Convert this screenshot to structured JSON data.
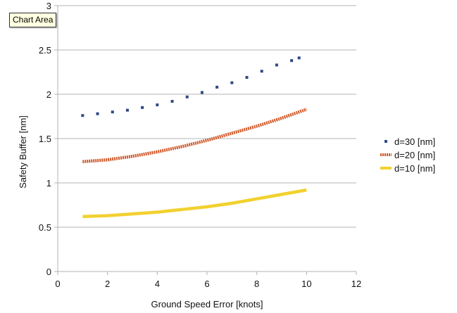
{
  "chart_data": {
    "type": "line",
    "title": "",
    "xlabel": "Ground Speed Error [knots]",
    "ylabel": "Safety Buffer [nm]",
    "xlim": [
      0,
      12
    ],
    "ylim": [
      0,
      3
    ],
    "xticks": [
      "0",
      "2",
      "4",
      "6",
      "8",
      "10",
      "12"
    ],
    "yticks": [
      "0",
      "0.5",
      "1",
      "1.5",
      "2",
      "2.5",
      "3"
    ],
    "grid": "horizontal",
    "legend_position": "right",
    "series": [
      {
        "name": "d=30 [nm]",
        "style": "dotted-squares",
        "color": "#2e4a86",
        "x": [
          1.0,
          1.6,
          2.2,
          2.8,
          3.4,
          4.0,
          4.6,
          5.2,
          5.8,
          6.4,
          7.0,
          7.6,
          8.2,
          8.8,
          9.4,
          9.7
        ],
        "y": [
          1.76,
          1.78,
          1.8,
          1.82,
          1.85,
          1.88,
          1.92,
          1.97,
          2.02,
          2.08,
          2.13,
          2.19,
          2.26,
          2.33,
          2.38,
          2.41
        ]
      },
      {
        "name": "d=20 [nm]",
        "style": "dense-dotted",
        "color": "#d0592a",
        "x": [
          1,
          2,
          3,
          4,
          5,
          6,
          7,
          8,
          9,
          10
        ],
        "y": [
          1.24,
          1.26,
          1.3,
          1.35,
          1.41,
          1.48,
          1.56,
          1.64,
          1.73,
          1.83
        ]
      },
      {
        "name": "d=10 [nm]",
        "style": "solid",
        "color": "#f2d12f",
        "x": [
          1,
          2,
          3,
          4,
          5,
          6,
          7,
          8,
          9,
          10
        ],
        "y": [
          0.62,
          0.63,
          0.65,
          0.67,
          0.7,
          0.73,
          0.77,
          0.82,
          0.87,
          0.92
        ]
      }
    ]
  },
  "tooltip": {
    "text": "Chart Area"
  }
}
